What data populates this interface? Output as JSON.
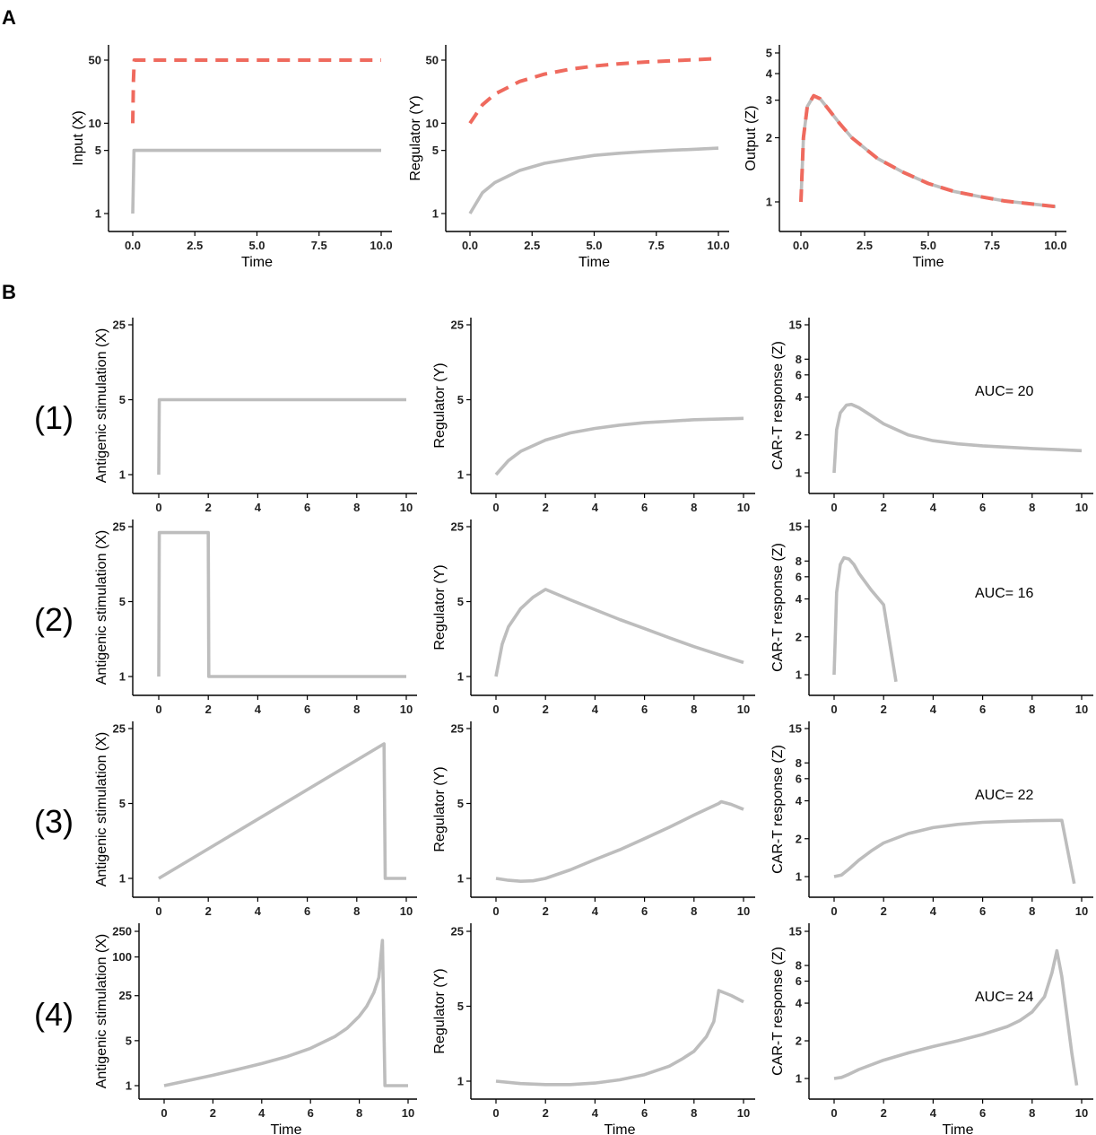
{
  "figure": {
    "panel_letters": [
      "A",
      "B"
    ],
    "row_labels": [
      "(1)",
      "(2)",
      "(3)",
      "(4)"
    ]
  },
  "colors": {
    "gray_series": "#bdbdbd",
    "red_series": "#ef6a5e",
    "axis": "#000000"
  },
  "chart_data": [
    {
      "id": "A1",
      "type": "line",
      "title": "",
      "xlabel": "Time",
      "ylabel": "Input (X)",
      "yscale": "log",
      "xlim": [
        0,
        10
      ],
      "ylim": [
        1,
        50
      ],
      "xticks": [
        0,
        2.5,
        5,
        7.5,
        10
      ],
      "xtick_labels": [
        "0.0",
        "2.5",
        "5.0",
        "7.5",
        "10.0"
      ],
      "yticks": [
        1,
        5,
        10,
        50
      ],
      "ytick_labels": [
        "1",
        "5",
        "10",
        "50"
      ],
      "series": [
        {
          "name": "gray",
          "style": "solid",
          "x": [
            0,
            0.05,
            10
          ],
          "y": [
            1,
            5,
            5
          ]
        },
        {
          "name": "red",
          "style": "dashed",
          "x": [
            0,
            0.03,
            0.06,
            10
          ],
          "y": [
            10,
            30,
            50,
            50
          ]
        }
      ]
    },
    {
      "id": "A2",
      "type": "line",
      "title": "",
      "xlabel": "Time",
      "ylabel": "Regulator (Y)",
      "yscale": "log",
      "xlim": [
        0,
        10
      ],
      "ylim": [
        1,
        50
      ],
      "xticks": [
        0,
        2.5,
        5,
        7.5,
        10
      ],
      "xtick_labels": [
        "0.0",
        "2.5",
        "5.0",
        "7.5",
        "10.0"
      ],
      "yticks": [
        1,
        5,
        10,
        50
      ],
      "ytick_labels": [
        "1",
        "5",
        "10",
        "50"
      ],
      "series": [
        {
          "name": "gray",
          "style": "solid",
          "x": [
            0,
            0.5,
            1,
            2,
            3,
            4,
            5,
            6,
            7,
            8,
            9,
            10
          ],
          "y": [
            1,
            1.7,
            2.2,
            3.0,
            3.6,
            4.0,
            4.4,
            4.65,
            4.85,
            5.0,
            5.15,
            5.3
          ]
        },
        {
          "name": "red",
          "style": "dashed",
          "x": [
            0,
            0.5,
            1,
            2,
            3,
            4,
            5,
            6,
            7,
            8,
            9,
            10
          ],
          "y": [
            10,
            16,
            21,
            29,
            35,
            39.5,
            43,
            45.5,
            47.5,
            49,
            50.5,
            52
          ]
        }
      ]
    },
    {
      "id": "A3",
      "type": "line",
      "title": "",
      "xlabel": "Time",
      "ylabel": "Output (Z)",
      "yscale": "log",
      "xlim": [
        0,
        10
      ],
      "ylim": [
        0.8,
        5.3
      ],
      "xticks": [
        0,
        2.5,
        5,
        7.5,
        10
      ],
      "xtick_labels": [
        "0.0",
        "2.5",
        "5.0",
        "7.5",
        "10.0"
      ],
      "yticks": [
        1,
        2,
        3,
        4,
        5
      ],
      "ytick_labels": [
        "1",
        "2",
        "3",
        "4",
        "5"
      ],
      "series": [
        {
          "name": "gray",
          "style": "solid",
          "x": [
            0,
            0.1,
            0.25,
            0.5,
            0.75,
            1,
            1.5,
            2,
            3,
            4,
            5,
            6,
            7,
            8,
            9,
            10
          ],
          "y": [
            1,
            2.0,
            2.8,
            3.15,
            3.05,
            2.8,
            2.35,
            2.0,
            1.6,
            1.38,
            1.22,
            1.12,
            1.06,
            1.01,
            0.98,
            0.95
          ]
        },
        {
          "name": "red",
          "style": "dashed",
          "x": [
            0,
            0.1,
            0.25,
            0.5,
            0.75,
            1,
            1.5,
            2,
            3,
            4,
            5,
            6,
            7,
            8,
            9,
            10
          ],
          "y": [
            1,
            2.0,
            2.8,
            3.15,
            3.05,
            2.8,
            2.35,
            2.0,
            1.6,
            1.38,
            1.22,
            1.12,
            1.06,
            1.01,
            0.98,
            0.95
          ]
        }
      ]
    },
    {
      "id": "B1X",
      "type": "line",
      "xlabel": "",
      "ylabel": "Antigenic stimulation (X)",
      "yscale": "log",
      "xlim": [
        0,
        10
      ],
      "ylim": [
        1,
        25
      ],
      "xticks": [
        0,
        2,
        4,
        6,
        8,
        10
      ],
      "xtick_labels": [
        "0",
        "2",
        "4",
        "6",
        "8",
        "10"
      ],
      "yticks": [
        1,
        5,
        25
      ],
      "ytick_labels": [
        "1",
        "5",
        "25"
      ],
      "series": [
        {
          "name": "gray",
          "style": "solid",
          "x": [
            0,
            0.02,
            10
          ],
          "y": [
            1,
            5,
            5
          ]
        }
      ]
    },
    {
      "id": "B1Y",
      "type": "line",
      "xlabel": "",
      "ylabel": "Regulator (Y)",
      "yscale": "log",
      "xlim": [
        0,
        10
      ],
      "ylim": [
        1,
        25
      ],
      "xticks": [
        0,
        2,
        4,
        6,
        8,
        10
      ],
      "xtick_labels": [
        "0",
        "2",
        "4",
        "6",
        "8",
        "10"
      ],
      "yticks": [
        1,
        5,
        25
      ],
      "ytick_labels": [
        "1",
        "5",
        "25"
      ],
      "series": [
        {
          "name": "gray",
          "style": "solid",
          "x": [
            0,
            0.5,
            1,
            2,
            3,
            4,
            5,
            6,
            7,
            8,
            9,
            10
          ],
          "y": [
            1,
            1.35,
            1.65,
            2.1,
            2.45,
            2.7,
            2.9,
            3.05,
            3.15,
            3.25,
            3.3,
            3.35
          ]
        }
      ]
    },
    {
      "id": "B1Z",
      "type": "line",
      "xlabel": "",
      "ylabel": "CAR-T response (Z)",
      "yscale": "log",
      "annotation": "AUC= 20",
      "xlim": [
        0,
        10
      ],
      "ylim": [
        0.85,
        15
      ],
      "xticks": [
        0,
        2,
        4,
        6,
        8,
        10
      ],
      "xtick_labels": [
        "0",
        "2",
        "4",
        "6",
        "8",
        "10"
      ],
      "yticks": [
        1,
        2,
        4,
        6,
        8,
        15
      ],
      "ytick_labels": [
        "1",
        "2",
        "4",
        "6",
        "8",
        "15"
      ],
      "series": [
        {
          "name": "gray",
          "style": "solid",
          "x": [
            0,
            0.1,
            0.25,
            0.5,
            0.7,
            1,
            1.5,
            2,
            3,
            4,
            5,
            6,
            7,
            8,
            9,
            10
          ],
          "y": [
            1,
            2.2,
            3.0,
            3.45,
            3.5,
            3.3,
            2.85,
            2.45,
            2.0,
            1.8,
            1.7,
            1.64,
            1.6,
            1.56,
            1.53,
            1.5
          ]
        }
      ]
    },
    {
      "id": "B2X",
      "type": "line",
      "xlabel": "",
      "ylabel": "Antigenic stimulation (X)",
      "yscale": "log",
      "xlim": [
        0,
        10
      ],
      "ylim": [
        1,
        25
      ],
      "xticks": [
        0,
        2,
        4,
        6,
        8,
        10
      ],
      "xtick_labels": [
        "0",
        "2",
        "4",
        "6",
        "8",
        "10"
      ],
      "yticks": [
        1,
        5,
        25
      ],
      "ytick_labels": [
        "1",
        "5",
        "25"
      ],
      "series": [
        {
          "name": "gray",
          "style": "solid",
          "x": [
            0,
            0.02,
            2,
            2.02,
            10
          ],
          "y": [
            1,
            22,
            22,
            1,
            1
          ]
        }
      ]
    },
    {
      "id": "B2Y",
      "type": "line",
      "xlabel": "",
      "ylabel": "Regulator (Y)",
      "yscale": "log",
      "xlim": [
        0,
        10
      ],
      "ylim": [
        1,
        25
      ],
      "xticks": [
        0,
        2,
        4,
        6,
        8,
        10
      ],
      "xtick_labels": [
        "0",
        "2",
        "4",
        "6",
        "8",
        "10"
      ],
      "yticks": [
        1,
        5,
        25
      ],
      "ytick_labels": [
        "1",
        "5",
        "25"
      ],
      "series": [
        {
          "name": "gray",
          "style": "solid",
          "x": [
            0,
            0.25,
            0.5,
            1,
            1.5,
            2,
            3,
            4,
            5,
            6,
            7,
            8,
            9,
            10
          ],
          "y": [
            1,
            2.0,
            2.9,
            4.3,
            5.5,
            6.5,
            5.2,
            4.2,
            3.4,
            2.8,
            2.3,
            1.9,
            1.6,
            1.35
          ]
        }
      ]
    },
    {
      "id": "B2Z",
      "type": "line",
      "xlabel": "",
      "ylabel": "CAR-T response (Z)",
      "yscale": "log",
      "annotation": "AUC= 16",
      "xlim": [
        0,
        10
      ],
      "ylim": [
        0.85,
        15
      ],
      "xticks": [
        0,
        2,
        4,
        6,
        8,
        10
      ],
      "xtick_labels": [
        "0",
        "2",
        "4",
        "6",
        "8",
        "10"
      ],
      "yticks": [
        1,
        2,
        4,
        6,
        8,
        15
      ],
      "ytick_labels": [
        "1",
        "2",
        "4",
        "6",
        "8",
        "15"
      ],
      "series": [
        {
          "name": "gray",
          "style": "solid",
          "x": [
            0,
            0.1,
            0.25,
            0.4,
            0.6,
            0.8,
            1,
            1.5,
            2,
            2.5
          ],
          "y": [
            1,
            4.5,
            7.5,
            8.5,
            8.3,
            7.5,
            6.4,
            4.7,
            3.6,
            0.88
          ]
        }
      ]
    },
    {
      "id": "B3X",
      "type": "line",
      "xlabel": "",
      "ylabel": "Antigenic stimulation (X)",
      "yscale": "log",
      "xlim": [
        0,
        10
      ],
      "ylim": [
        1,
        25
      ],
      "xticks": [
        0,
        2,
        4,
        6,
        8,
        10
      ],
      "xtick_labels": [
        "0",
        "2",
        "4",
        "6",
        "8",
        "10"
      ],
      "yticks": [
        1,
        5,
        25
      ],
      "ytick_labels": [
        "1",
        "5",
        "25"
      ],
      "series": [
        {
          "name": "gray",
          "style": "solid",
          "x": [
            0,
            9.1,
            9.15,
            10
          ],
          "y": [
            1,
            18,
            1,
            1
          ]
        }
      ]
    },
    {
      "id": "B3Y",
      "type": "line",
      "xlabel": "",
      "ylabel": "Regulator (Y)",
      "yscale": "log",
      "xlim": [
        0,
        10
      ],
      "ylim": [
        1,
        25
      ],
      "xticks": [
        0,
        2,
        4,
        6,
        8,
        10
      ],
      "xtick_labels": [
        "0",
        "2",
        "4",
        "6",
        "8",
        "10"
      ],
      "yticks": [
        1,
        5,
        25
      ],
      "ytick_labels": [
        "1",
        "5",
        "25"
      ],
      "series": [
        {
          "name": "gray",
          "style": "solid",
          "x": [
            0,
            0.5,
            1,
            1.5,
            2,
            3,
            4,
            5,
            6,
            7,
            8,
            9,
            9.1,
            9.5,
            10
          ],
          "y": [
            1,
            0.96,
            0.94,
            0.95,
            1.0,
            1.2,
            1.5,
            1.85,
            2.35,
            3.0,
            3.9,
            5.0,
            5.2,
            4.9,
            4.4
          ]
        }
      ]
    },
    {
      "id": "B3Z",
      "type": "line",
      "xlabel": "",
      "ylabel": "CAR-T response (Z)",
      "yscale": "log",
      "annotation": "AUC= 22",
      "xlim": [
        0,
        10
      ],
      "ylim": [
        0.85,
        15
      ],
      "xticks": [
        0,
        2,
        4,
        6,
        8,
        10
      ],
      "xtick_labels": [
        "0",
        "2",
        "4",
        "6",
        "8",
        "10"
      ],
      "yticks": [
        1,
        2,
        4,
        6,
        8,
        15
      ],
      "ytick_labels": [
        "1",
        "2",
        "4",
        "6",
        "8",
        "15"
      ],
      "series": [
        {
          "name": "gray",
          "style": "solid",
          "x": [
            0,
            0.3,
            0.6,
            1,
            1.5,
            2,
            3,
            4,
            5,
            6,
            7,
            8,
            9,
            9.2,
            9.7
          ],
          "y": [
            1,
            1.03,
            1.15,
            1.35,
            1.6,
            1.85,
            2.2,
            2.45,
            2.6,
            2.7,
            2.75,
            2.78,
            2.8,
            2.8,
            0.88
          ]
        }
      ]
    },
    {
      "id": "B4X",
      "type": "line",
      "xlabel": "Time",
      "ylabel": "Antigenic stimulation (X)",
      "yscale": "log",
      "xlim": [
        -0.9,
        10.1
      ],
      "ylim": [
        1,
        250
      ],
      "xticks": [
        0,
        2,
        4,
        6,
        8,
        10
      ],
      "xtick_labels": [
        "0",
        "2",
        "4",
        "6",
        "8",
        "10"
      ],
      "yticks": [
        1,
        5,
        25,
        100,
        250
      ],
      "ytick_labels": [
        "1",
        "5",
        "25",
        "100",
        "250"
      ],
      "series": [
        {
          "name": "gray",
          "style": "solid",
          "x": [
            0,
            1,
            2,
            3,
            4,
            5,
            6,
            7,
            7.5,
            8,
            8.3,
            8.6,
            8.8,
            8.95,
            9.05,
            10
          ],
          "y": [
            1,
            1.2,
            1.45,
            1.78,
            2.2,
            2.8,
            3.8,
            5.8,
            7.8,
            12,
            17,
            28,
            48,
            180,
            1,
            1
          ]
        }
      ]
    },
    {
      "id": "B4Y",
      "type": "line",
      "xlabel": "Time",
      "ylabel": "Regulator (Y)",
      "yscale": "log",
      "xlim": [
        0,
        10
      ],
      "ylim": [
        1,
        25
      ],
      "xticks": [
        0,
        2,
        4,
        6,
        8,
        10
      ],
      "xtick_labels": [
        "0",
        "2",
        "4",
        "6",
        "8",
        "10"
      ],
      "yticks": [
        1,
        5,
        25
      ],
      "ytick_labels": [
        "1",
        "5",
        "25"
      ],
      "series": [
        {
          "name": "gray",
          "style": "solid",
          "x": [
            0,
            1,
            2,
            3,
            4,
            5,
            6,
            7,
            7.5,
            8,
            8.5,
            8.8,
            9,
            9.5,
            10
          ],
          "y": [
            1,
            0.95,
            0.93,
            0.93,
            0.96,
            1.03,
            1.15,
            1.38,
            1.6,
            1.9,
            2.6,
            3.6,
            7.0,
            6.3,
            5.5
          ]
        }
      ]
    },
    {
      "id": "B4Z",
      "type": "line",
      "xlabel": "Time",
      "ylabel": "CAR-T response (Z)",
      "yscale": "log",
      "annotation": "AUC= 24",
      "xlim": [
        0,
        10
      ],
      "ylim": [
        0.85,
        15
      ],
      "xticks": [
        0,
        2,
        4,
        6,
        8,
        10
      ],
      "xtick_labels": [
        "0",
        "2",
        "4",
        "6",
        "8",
        "10"
      ],
      "yticks": [
        1,
        2,
        4,
        6,
        8,
        15
      ],
      "ytick_labels": [
        "1",
        "2",
        "4",
        "6",
        "8",
        "15"
      ],
      "series": [
        {
          "name": "gray",
          "style": "solid",
          "x": [
            0,
            0.3,
            0.6,
            1,
            2,
            3,
            4,
            5,
            6,
            7,
            7.5,
            8,
            8.5,
            8.8,
            9.0,
            9.2,
            9.6,
            9.8
          ],
          "y": [
            1,
            1.02,
            1.08,
            1.18,
            1.4,
            1.6,
            1.8,
            2.0,
            2.25,
            2.6,
            2.9,
            3.4,
            4.5,
            7.0,
            10.5,
            6.5,
            1.6,
            0.88
          ]
        }
      ]
    }
  ]
}
